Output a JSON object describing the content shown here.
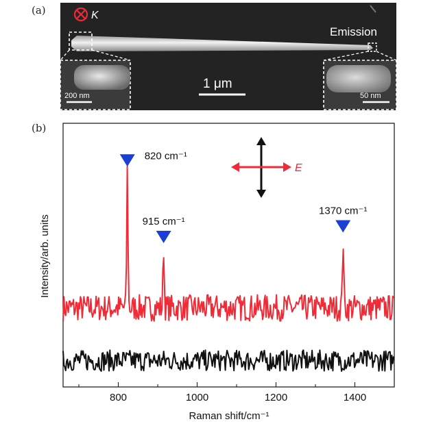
{
  "figure": {
    "panel_a_label": "(a)",
    "panel_b_label": "(b)"
  },
  "micrograph": {
    "k_symbol": "K",
    "emission_label": "Emission",
    "scale_main": "1 μm",
    "scale_inset_left": "200 nm",
    "scale_inset_right": "50 nm",
    "polarization_label": "E"
  },
  "chart_data": {
    "type": "line",
    "xlabel": "Raman shift/cm⁻¹",
    "ylabel": "Intensity/arb. units",
    "xlim": [
      660,
      1500
    ],
    "xticks": [
      800,
      1000,
      1200,
      1400
    ],
    "yticks_labeled": false,
    "grid": false,
    "series": [
      {
        "color": "#ee2b36",
        "baseline": 0.3,
        "noise_amplitude": 0.05,
        "peaks": [
          {
            "x": 823,
            "height": 0.82
          },
          {
            "x": 915,
            "height": 0.53
          },
          {
            "x": 1370,
            "height": 0.57
          }
        ]
      },
      {
        "color": "#111111",
        "baseline": 0.1,
        "noise_amplitude": 0.04,
        "peaks": []
      }
    ],
    "annotations": [
      {
        "x": 823,
        "text": "820 cm⁻¹"
      },
      {
        "x": 915,
        "text": "915 cm⁻¹"
      },
      {
        "x": 1370,
        "text": "1370 cm⁻¹"
      }
    ],
    "marker_color": "#1a3fd6"
  }
}
